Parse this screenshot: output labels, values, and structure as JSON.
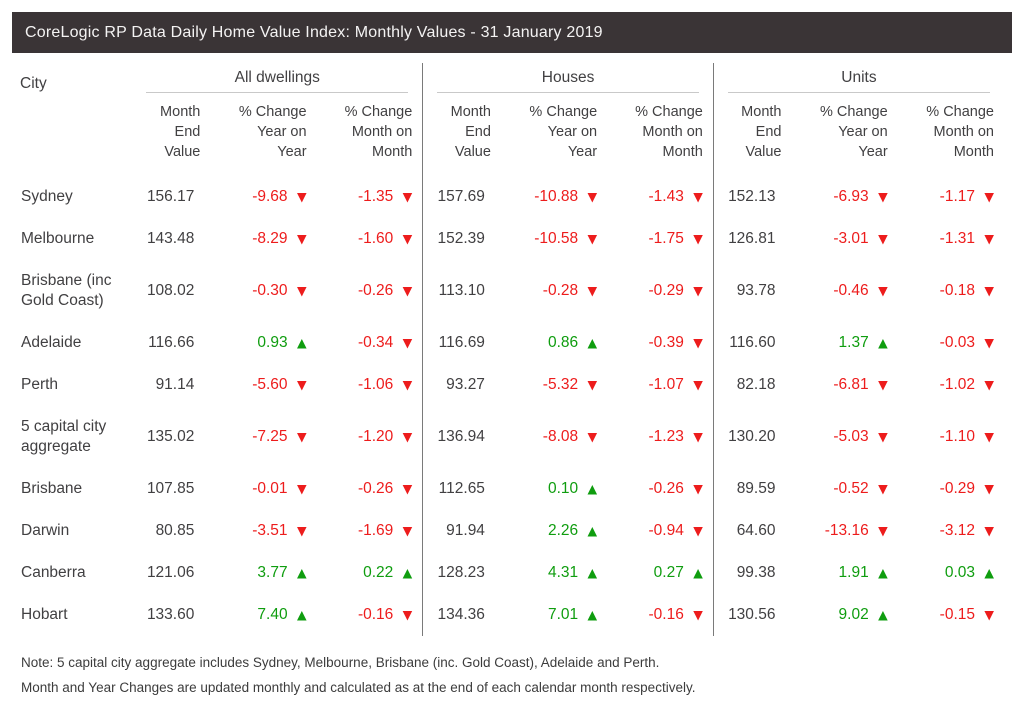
{
  "chart_data": {
    "type": "table",
    "title": "CoreLogic RP Data Daily Home Value Index: Monthly Values - 31 January 2019",
    "city_column_label": "City",
    "column_groups": [
      "All dwellings",
      "Houses",
      "Units"
    ],
    "sub_columns": [
      "Month End Value",
      "% Change Year on Year",
      "% Change Month on Month"
    ],
    "sub_column_display": [
      "Month\nEnd\nValue",
      "% Change\nYear on\nYear",
      "% Change\nMonth on\nMonth"
    ],
    "rows": [
      {
        "city": "Sydney",
        "values": [
          [
            "156.17",
            {
              "value": "-9.68",
              "direction": "down"
            },
            {
              "value": "-1.35",
              "direction": "down"
            }
          ],
          [
            "157.69",
            {
              "value": "-10.88",
              "direction": "down"
            },
            {
              "value": "-1.43",
              "direction": "down"
            }
          ],
          [
            "152.13",
            {
              "value": "-6.93",
              "direction": "down"
            },
            {
              "value": "-1.17",
              "direction": "down"
            }
          ]
        ]
      },
      {
        "city": "Melbourne",
        "values": [
          [
            "143.48",
            {
              "value": "-8.29",
              "direction": "down"
            },
            {
              "value": "-1.60",
              "direction": "down"
            }
          ],
          [
            "152.39",
            {
              "value": "-10.58",
              "direction": "down"
            },
            {
              "value": "-1.75",
              "direction": "down"
            }
          ],
          [
            "126.81",
            {
              "value": "-3.01",
              "direction": "down"
            },
            {
              "value": "-1.31",
              "direction": "down"
            }
          ]
        ]
      },
      {
        "city": "Brisbane (inc Gold Coast)",
        "values": [
          [
            "108.02",
            {
              "value": "-0.30",
              "direction": "down"
            },
            {
              "value": "-0.26",
              "direction": "down"
            }
          ],
          [
            "113.10",
            {
              "value": "-0.28",
              "direction": "down"
            },
            {
              "value": "-0.29",
              "direction": "down"
            }
          ],
          [
            "93.78",
            {
              "value": "-0.46",
              "direction": "down"
            },
            {
              "value": "-0.18",
              "direction": "down"
            }
          ]
        ]
      },
      {
        "city": "Adelaide",
        "values": [
          [
            "116.66",
            {
              "value": "0.93",
              "direction": "up"
            },
            {
              "value": "-0.34",
              "direction": "down"
            }
          ],
          [
            "116.69",
            {
              "value": "0.86",
              "direction": "up"
            },
            {
              "value": "-0.39",
              "direction": "down"
            }
          ],
          [
            "116.60",
            {
              "value": "1.37",
              "direction": "up"
            },
            {
              "value": "-0.03",
              "direction": "down"
            }
          ]
        ]
      },
      {
        "city": "Perth",
        "values": [
          [
            "91.14",
            {
              "value": "-5.60",
              "direction": "down"
            },
            {
              "value": "-1.06",
              "direction": "down"
            }
          ],
          [
            "93.27",
            {
              "value": "-5.32",
              "direction": "down"
            },
            {
              "value": "-1.07",
              "direction": "down"
            }
          ],
          [
            "82.18",
            {
              "value": "-6.81",
              "direction": "down"
            },
            {
              "value": "-1.02",
              "direction": "down"
            }
          ]
        ]
      },
      {
        "city": "5 capital city aggregate",
        "values": [
          [
            "135.02",
            {
              "value": "-7.25",
              "direction": "down"
            },
            {
              "value": "-1.20",
              "direction": "down"
            }
          ],
          [
            "136.94",
            {
              "value": "-8.08",
              "direction": "down"
            },
            {
              "value": "-1.23",
              "direction": "down"
            }
          ],
          [
            "130.20",
            {
              "value": "-5.03",
              "direction": "down"
            },
            {
              "value": "-1.10",
              "direction": "down"
            }
          ]
        ]
      },
      {
        "city": "Brisbane",
        "values": [
          [
            "107.85",
            {
              "value": "-0.01",
              "direction": "down"
            },
            {
              "value": "-0.26",
              "direction": "down"
            }
          ],
          [
            "112.65",
            {
              "value": "0.10",
              "direction": "up"
            },
            {
              "value": "-0.26",
              "direction": "down"
            }
          ],
          [
            "89.59",
            {
              "value": "-0.52",
              "direction": "down"
            },
            {
              "value": "-0.29",
              "direction": "down"
            }
          ]
        ]
      },
      {
        "city": "Darwin",
        "values": [
          [
            "80.85",
            {
              "value": "-3.51",
              "direction": "down"
            },
            {
              "value": "-1.69",
              "direction": "down"
            }
          ],
          [
            "91.94",
            {
              "value": "2.26",
              "direction": "up"
            },
            {
              "value": "-0.94",
              "direction": "down"
            }
          ],
          [
            "64.60",
            {
              "value": "-13.16",
              "direction": "down"
            },
            {
              "value": "-3.12",
              "direction": "down"
            }
          ]
        ]
      },
      {
        "city": "Canberra",
        "values": [
          [
            "121.06",
            {
              "value": "3.77",
              "direction": "up"
            },
            {
              "value": "0.22",
              "direction": "up"
            }
          ],
          [
            "128.23",
            {
              "value": "4.31",
              "direction": "up"
            },
            {
              "value": "0.27",
              "direction": "up"
            }
          ],
          [
            "99.38",
            {
              "value": "1.91",
              "direction": "up"
            },
            {
              "value": "0.03",
              "direction": "up"
            }
          ]
        ]
      },
      {
        "city": "Hobart",
        "values": [
          [
            "133.60",
            {
              "value": "7.40",
              "direction": "up"
            },
            {
              "value": "-0.16",
              "direction": "down"
            }
          ],
          [
            "134.36",
            {
              "value": "7.01",
              "direction": "up"
            },
            {
              "value": "-0.16",
              "direction": "down"
            }
          ],
          [
            "130.56",
            {
              "value": "9.02",
              "direction": "up"
            },
            {
              "value": "-0.15",
              "direction": "down"
            }
          ]
        ]
      }
    ],
    "notes": [
      "Note: 5 capital city aggregate includes Sydney, Melbourne, Brisbane (inc. Gold Coast), Adelaide and Perth.",
      "Month and Year Changes are updated monthly and calculated as at the end of each calendar month respectively."
    ]
  },
  "icons": {
    "up_arrow": "▲",
    "down_arrow": "▼"
  },
  "colors": {
    "negative": "#ed1c1c",
    "positive": "#0f9d0f",
    "header_bar_background": "#3a3436",
    "header_bar_text": "#f4f3f3",
    "body_text": "#414042"
  }
}
